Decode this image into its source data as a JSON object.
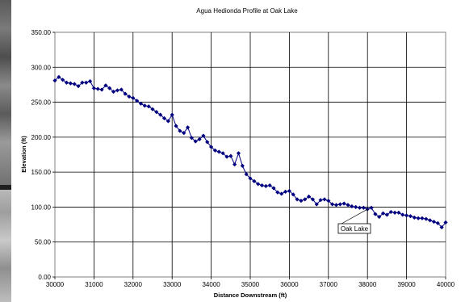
{
  "chart_data": {
    "type": "line",
    "title": "Agua Hedionda Profile at Oak Lake",
    "xlabel": "Distance Downstream (ft)",
    "ylabel": "Elevation (ft)",
    "xlim": [
      30000,
      40000
    ],
    "ylim": [
      0,
      350
    ],
    "x_ticks": [
      "30000",
      "31000",
      "32000",
      "33000",
      "34000",
      "35000",
      "36000",
      "37000",
      "38000",
      "39000",
      "40000"
    ],
    "y_ticks": [
      "0.00",
      "50.00",
      "100.00",
      "150.00",
      "200.00",
      "250.00",
      "300.00",
      "350.00"
    ],
    "grid": true,
    "legend": "none",
    "series": [
      {
        "color": "#000080",
        "marker": "diamond",
        "x": [
          30000,
          30100,
          30200,
          30300,
          30400,
          30500,
          30600,
          30700,
          30800,
          30900,
          31000,
          31100,
          31200,
          31300,
          31400,
          31500,
          31600,
          31700,
          31800,
          31900,
          32000,
          32100,
          32200,
          32300,
          32400,
          32500,
          32600,
          32700,
          32800,
          32900,
          33000,
          33100,
          33200,
          33300,
          33400,
          33500,
          33600,
          33700,
          33800,
          33900,
          34000,
          34100,
          34200,
          34300,
          34400,
          34500,
          34600,
          34700,
          34800,
          34900,
          35000,
          35100,
          35200,
          35300,
          35400,
          35500,
          35600,
          35700,
          35800,
          35900,
          36000,
          36100,
          36200,
          36300,
          36400,
          36500,
          36600,
          36700,
          36800,
          36900,
          37000,
          37100,
          37200,
          37300,
          37400,
          37500,
          37600,
          37700,
          37800,
          37900,
          38000,
          38100,
          38200,
          38300,
          38400,
          38500,
          38600,
          38700,
          38800,
          38900,
          39000,
          39100,
          39200,
          39300,
          39400,
          39500,
          39600,
          39700,
          39800,
          39900,
          40000
        ],
        "values": [
          281,
          286,
          282,
          278,
          277,
          276,
          273,
          278,
          278,
          280,
          270,
          269,
          268,
          274,
          270,
          265,
          267,
          268,
          262,
          258,
          256,
          252,
          248,
          245,
          244,
          240,
          236,
          232,
          227,
          223,
          232,
          216,
          209,
          206,
          214,
          199,
          194,
          197,
          202,
          193,
          186,
          181,
          179,
          177,
          172,
          173,
          161,
          177,
          159,
          147,
          141,
          137,
          133,
          131,
          130,
          131,
          127,
          121,
          119,
          122,
          123,
          118,
          111,
          109,
          111,
          115,
          111,
          104,
          110,
          111,
          109,
          104,
          103,
          104,
          105,
          103,
          101,
          100,
          99,
          99,
          97,
          99,
          90,
          86,
          91,
          89,
          93,
          92,
          92,
          89,
          88,
          87,
          85,
          84,
          84,
          83,
          81,
          79,
          77,
          71,
          78
        ]
      }
    ],
    "annotations": [
      {
        "text": "Oak Lake",
        "x": 38000,
        "y": 97
      }
    ]
  }
}
